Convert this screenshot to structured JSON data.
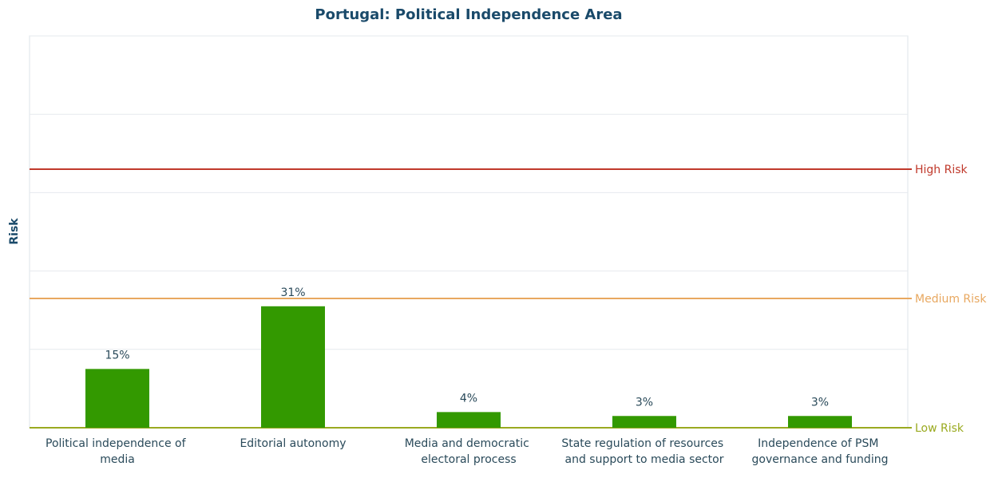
{
  "chart_data": {
    "type": "bar",
    "title": "Portugal: Political Independence Area",
    "y_label": "Risk",
    "categories": [
      "Political independence of media",
      "Editorial autonomy",
      "Media and democratic electoral process",
      "State regulation of resources and support to media sector",
      "Independence of PSM governance and funding"
    ],
    "values": [
      15,
      31,
      4,
      3,
      3
    ],
    "value_labels": [
      "15%",
      "31%",
      "4%",
      "3%",
      "3%"
    ],
    "color": "#339900",
    "ylim": [
      0,
      100
    ],
    "yticks": [
      0,
      20,
      40,
      60,
      80,
      100
    ],
    "grid": true,
    "reference_lines": [
      {
        "label": "High Risk",
        "value": 66,
        "color": "#c0392b"
      },
      {
        "label": "Medium Risk",
        "value": 33,
        "color": "#e8a860"
      },
      {
        "label": "Low Risk",
        "value": 0,
        "color": "#9aaa20"
      }
    ]
  }
}
